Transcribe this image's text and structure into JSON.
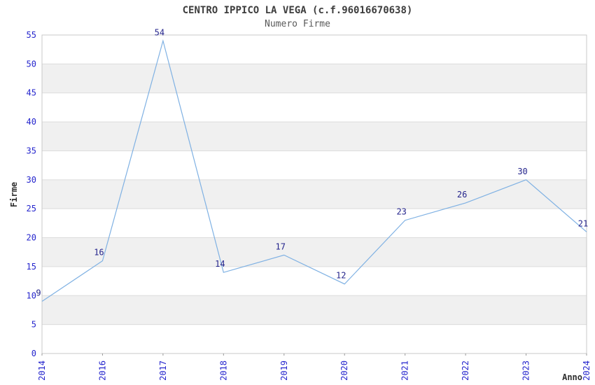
{
  "page": {
    "background": "#ffffff"
  },
  "chart_data": {
    "type": "line",
    "title": "CENTRO IPPICO LA VEGA (c.f.96016670638)",
    "subtitle": "Numero Firme",
    "xlabel": "Anno",
    "ylabel": "Firme",
    "categories": [
      "2014",
      "2016",
      "2017",
      "2018",
      "2019",
      "2020",
      "2021",
      "2022",
      "2023",
      "2024"
    ],
    "values": [
      9,
      16,
      54,
      14,
      17,
      12,
      23,
      26,
      30,
      21
    ],
    "ylim": [
      0,
      55
    ],
    "ytick_step": 5,
    "yticks": [
      0,
      5,
      10,
      15,
      20,
      25,
      30,
      35,
      40,
      45,
      50,
      55
    ],
    "grid": "horizontal-only",
    "legend": "none",
    "banded_background": true,
    "point_markers": false,
    "x_tick_rotation_deg": -90,
    "colors": {
      "line": "#7fb1e3",
      "tick_label": "#2525cd",
      "value_label": "#24248c",
      "band": "#f0f0f0",
      "grid": "#dcdcdc",
      "border": "#c9c9c9",
      "axis_title": "#2e2e2e",
      "title": "#3d3d3d",
      "subtitle": "#595959",
      "x_tick_mark": "#999999"
    }
  }
}
